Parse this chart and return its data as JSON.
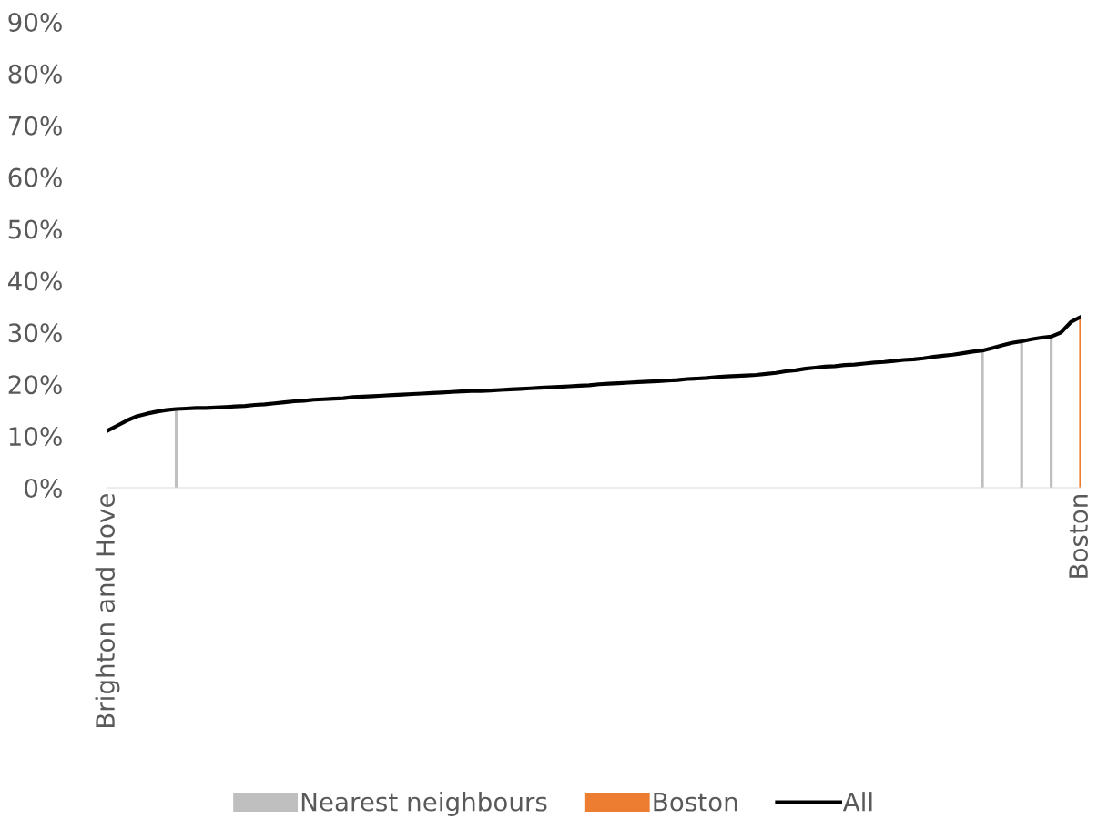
{
  "chart_data": {
    "type": "bar",
    "categories": [
      "Brighton and Hove",
      null,
      null,
      null,
      null,
      null,
      null,
      null,
      null,
      null,
      null,
      null,
      null,
      null,
      null,
      null,
      null,
      null,
      null,
      null,
      null,
      null,
      null,
      null,
      null,
      null,
      null,
      null,
      null,
      null,
      null,
      null,
      null,
      null,
      null,
      null,
      null,
      null,
      null,
      null,
      null,
      null,
      null,
      null,
      null,
      null,
      null,
      null,
      null,
      null,
      null,
      null,
      null,
      null,
      null,
      null,
      null,
      null,
      null,
      null,
      null,
      null,
      null,
      null,
      null,
      null,
      null,
      null,
      null,
      null,
      null,
      null,
      null,
      null,
      null,
      null,
      null,
      null,
      null,
      null,
      null,
      null,
      null,
      null,
      null,
      null,
      null,
      null,
      null,
      null,
      null,
      null,
      null,
      null,
      null,
      null,
      null,
      null,
      null,
      "Boston"
    ],
    "series": [
      {
        "name": "Nearest neighbours",
        "color": "#bfbfbf",
        "values": [
          null,
          null,
          null,
          null,
          null,
          null,
          null,
          15.2,
          null,
          null,
          null,
          null,
          null,
          null,
          null,
          null,
          null,
          null,
          null,
          null,
          null,
          null,
          null,
          null,
          null,
          null,
          null,
          null,
          null,
          null,
          null,
          null,
          null,
          null,
          null,
          null,
          null,
          null,
          null,
          null,
          null,
          null,
          null,
          null,
          null,
          null,
          null,
          null,
          null,
          null,
          null,
          null,
          null,
          null,
          null,
          null,
          null,
          null,
          null,
          null,
          null,
          null,
          null,
          null,
          null,
          null,
          null,
          null,
          null,
          null,
          null,
          null,
          null,
          null,
          null,
          null,
          null,
          null,
          null,
          null,
          null,
          null,
          null,
          null,
          null,
          null,
          null,
          null,
          null,
          26.5,
          null,
          null,
          null,
          28.3,
          null,
          null,
          29.2,
          null,
          null,
          null
        ]
      },
      {
        "name": "Boston",
        "color": "#ed7d31",
        "values": [
          null,
          null,
          null,
          null,
          null,
          null,
          null,
          null,
          null,
          null,
          null,
          null,
          null,
          null,
          null,
          null,
          null,
          null,
          null,
          null,
          null,
          null,
          null,
          null,
          null,
          null,
          null,
          null,
          null,
          null,
          null,
          null,
          null,
          null,
          null,
          null,
          null,
          null,
          null,
          null,
          null,
          null,
          null,
          null,
          null,
          null,
          null,
          null,
          null,
          null,
          null,
          null,
          null,
          null,
          null,
          null,
          null,
          null,
          null,
          null,
          null,
          null,
          null,
          null,
          null,
          null,
          null,
          null,
          null,
          null,
          null,
          null,
          null,
          null,
          null,
          null,
          null,
          null,
          null,
          null,
          null,
          null,
          null,
          null,
          null,
          null,
          null,
          null,
          null,
          null,
          null,
          null,
          null,
          null,
          null,
          null,
          null,
          null,
          null,
          33.0
        ]
      },
      {
        "name": "All",
        "type": "line",
        "color": "#000000",
        "values": [
          11,
          12,
          13,
          13.8,
          14.3,
          14.7,
          15,
          15.2,
          15.3,
          15.4,
          15.4,
          15.5,
          15.6,
          15.7,
          15.8,
          16.0,
          16.1,
          16.3,
          16.5,
          16.7,
          16.8,
          17.0,
          17.1,
          17.2,
          17.3,
          17.5,
          17.6,
          17.7,
          17.8,
          17.9,
          18.0,
          18.1,
          18.2,
          18.3,
          18.4,
          18.5,
          18.6,
          18.7,
          18.7,
          18.8,
          18.9,
          19.0,
          19.1,
          19.2,
          19.3,
          19.4,
          19.5,
          19.6,
          19.7,
          19.8,
          20.0,
          20.1,
          20.2,
          20.3,
          20.4,
          20.5,
          20.6,
          20.7,
          20.8,
          21.0,
          21.1,
          21.2,
          21.4,
          21.5,
          21.6,
          21.7,
          21.8,
          22.0,
          22.2,
          22.5,
          22.7,
          23.0,
          23.2,
          23.4,
          23.5,
          23.7,
          23.8,
          24.0,
          24.2,
          24.3,
          24.5,
          24.7,
          24.8,
          25.0,
          25.3,
          25.5,
          25.7,
          26.0,
          26.3,
          26.5,
          27.0,
          27.5,
          28.0,
          28.3,
          28.7,
          29.0,
          29.2,
          30.0,
          32.0,
          33.0
        ]
      }
    ],
    "ylim": [
      0,
      90
    ],
    "yticks": [
      {
        "value": 0,
        "label": "0%"
      },
      {
        "value": 10,
        "label": "10%"
      },
      {
        "value": 20,
        "label": "20%"
      },
      {
        "value": 30,
        "label": "30%"
      },
      {
        "value": 40,
        "label": "40%"
      },
      {
        "value": 50,
        "label": "50%"
      },
      {
        "value": 60,
        "label": "60%"
      },
      {
        "value": 70,
        "label": "70%"
      },
      {
        "value": 80,
        "label": "80%"
      },
      {
        "value": 90,
        "label": "90%"
      }
    ],
    "grid": false,
    "legend": "bottom",
    "marker": "none",
    "line_style": "solid"
  }
}
